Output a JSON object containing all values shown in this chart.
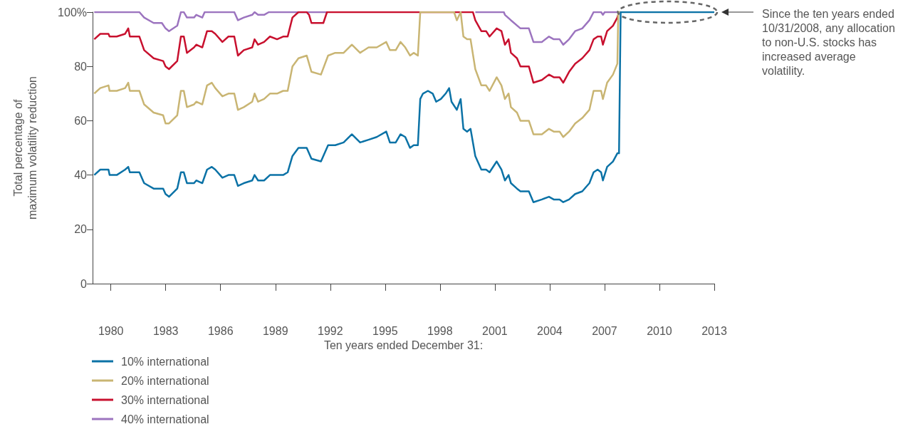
{
  "chart_data": {
    "type": "line",
    "xlabel": "Ten years ended December 31:",
    "ylabel": "Total percentage of\nmaximum volatility reduction",
    "xlim": [
      1979,
      2013
    ],
    "xticks": [
      1980,
      1983,
      1986,
      1989,
      1992,
      1995,
      1998,
      2001,
      2004,
      2007,
      2010,
      2013
    ],
    "ylim": [
      0,
      100
    ],
    "yticks": [
      0,
      20,
      40,
      60,
      80,
      {
        "value": 100,
        "label": "100%"
      }
    ],
    "grid": false,
    "legend": "bottom left",
    "marker": "none",
    "line_style": "solid",
    "annotations": [
      "Since the ten years ended 10/31/2008, any allocation to non-U.S. stocks has increased average volatility."
    ],
    "series": [
      {
        "name": "10% international",
        "color": "#0b72a6",
        "x": [
          1979.09,
          1979.42,
          1979.87,
          1979.93,
          1980.32,
          1980.78,
          1980.95,
          1981.04,
          1981.56,
          1981.82,
          1982.34,
          1982.86,
          1982.99,
          1983.18,
          1983.63,
          1983.83,
          1983.99,
          1984.16,
          1984.55,
          1984.67,
          1985.0,
          1985.26,
          1985.52,
          1985.71,
          1986.1,
          1986.43,
          1986.75,
          1986.95,
          1987.27,
          1987.73,
          1987.86,
          1988.05,
          1988.38,
          1988.7,
          1989.09,
          1989.42,
          1989.67,
          1989.93,
          1990.26,
          1990.71,
          1990.97,
          1991.49,
          1991.88,
          1992.27,
          1992.73,
          1993.18,
          1993.63,
          1994.09,
          1994.54,
          1995.06,
          1995.26,
          1995.58,
          1995.84,
          1996.1,
          1996.36,
          1996.56,
          1996.79,
          1996.92,
          1997.07,
          1997.34,
          1997.6,
          1997.79,
          1998.05,
          1998.31,
          1998.5,
          1998.63,
          1998.92,
          1999.13,
          1999.28,
          1999.48,
          1999.67,
          1999.93,
          2000.26,
          2000.52,
          2000.71,
          2001.1,
          2001.36,
          2001.55,
          2001.75,
          2001.88,
          2002.21,
          2002.4,
          2002.86,
          2003.11,
          2003.57,
          2003.96,
          2004.22,
          2004.54,
          2004.74,
          2005.06,
          2005.39,
          2005.78,
          2006.17,
          2006.4,
          2006.62,
          2006.81,
          2006.91,
          2007.14,
          2007.46,
          2007.7,
          2007.79,
          2007.88,
          2013
        ],
        "values": [
          40,
          42,
          42,
          40,
          40,
          42,
          43,
          41,
          41,
          37,
          35,
          35,
          33,
          32,
          35,
          41,
          41,
          37,
          37,
          38,
          37,
          42,
          43,
          42,
          39,
          40,
          40,
          36,
          37,
          38,
          40,
          38,
          38,
          40,
          40,
          40,
          41,
          47,
          50,
          50,
          46,
          45,
          51,
          51,
          52,
          55,
          52,
          53,
          54,
          56,
          52,
          52,
          55,
          54,
          50,
          51,
          51,
          68,
          70,
          71,
          70,
          67,
          68,
          70,
          72,
          67,
          64,
          68,
          57,
          56,
          57,
          47,
          42,
          42,
          41,
          45,
          42,
          38,
          40,
          37,
          35,
          34,
          34,
          30,
          31,
          32,
          31,
          31,
          30,
          31,
          33,
          34,
          37,
          41,
          42,
          41,
          38,
          43,
          45,
          48,
          48,
          100,
          100
        ]
      },
      {
        "name": "20% international",
        "color": "#c9b573",
        "x": [
          1979.09,
          1979.42,
          1979.87,
          1979.93,
          1980.32,
          1980.78,
          1980.95,
          1981.04,
          1981.56,
          1981.82,
          1982.34,
          1982.86,
          1982.99,
          1983.18,
          1983.63,
          1983.83,
          1983.99,
          1984.16,
          1984.55,
          1984.67,
          1985.0,
          1985.26,
          1985.52,
          1985.71,
          1986.1,
          1986.43,
          1986.75,
          1986.95,
          1987.27,
          1987.73,
          1987.86,
          1988.05,
          1988.38,
          1988.7,
          1989.09,
          1989.42,
          1989.67,
          1989.93,
          1990.26,
          1990.71,
          1990.97,
          1991.49,
          1991.88,
          1992.27,
          1992.73,
          1993.18,
          1993.63,
          1994.09,
          1994.54,
          1995.06,
          1995.26,
          1995.58,
          1995.84,
          1996.1,
          1996.36,
          1996.56,
          1996.79,
          1996.92,
          1998.77,
          1998.92,
          1999.13,
          1999.28,
          1999.48,
          1999.67,
          1999.93,
          2000.26,
          2000.52,
          2000.71,
          2001.1,
          2001.36,
          2001.55,
          2001.75,
          2001.88,
          2002.21,
          2002.4,
          2002.86,
          2003.11,
          2003.57,
          2003.96,
          2004.22,
          2004.54,
          2004.74,
          2005.06,
          2005.39,
          2005.78,
          2006.17,
          2006.4,
          2006.62,
          2006.81,
          2006.91,
          2007.14,
          2007.46,
          2007.7,
          2007.75,
          2007.88
        ],
        "values": [
          70,
          72,
          73,
          71,
          71,
          72,
          74,
          71,
          71,
          66,
          63,
          62,
          59,
          59,
          62,
          71,
          71,
          65,
          66,
          67,
          66,
          73,
          74,
          72,
          69,
          70,
          70,
          64,
          65,
          67,
          70,
          67,
          68,
          70,
          70,
          71,
          71,
          80,
          83,
          84,
          78,
          77,
          84,
          85,
          85,
          88,
          85,
          87,
          87,
          89,
          86,
          86,
          89,
          87,
          84,
          85,
          84,
          100,
          100,
          97,
          100,
          91,
          90,
          90,
          79,
          73,
          73,
          71,
          76,
          73,
          68,
          70,
          65,
          63,
          60,
          60,
          55,
          55,
          57,
          56,
          56,
          54,
          56,
          59,
          61,
          64,
          71,
          71,
          71,
          68,
          74,
          77,
          81,
          100,
          100
        ]
      },
      {
        "name": "30% international",
        "color": "#c8102e",
        "x": [
          1979.09,
          1979.42,
          1979.87,
          1979.93,
          1980.32,
          1980.78,
          1980.95,
          1981.04,
          1981.56,
          1981.82,
          1982.34,
          1982.86,
          1982.99,
          1983.18,
          1983.63,
          1983.83,
          1983.99,
          1984.16,
          1984.55,
          1984.67,
          1985.0,
          1985.26,
          1985.52,
          1985.71,
          1986.1,
          1986.43,
          1986.75,
          1986.95,
          1987.27,
          1987.73,
          1987.86,
          1988.05,
          1988.38,
          1988.7,
          1989.09,
          1989.42,
          1989.67,
          1989.93,
          1990.26,
          1990.71,
          1990.84,
          1990.97,
          1991.49,
          1991.62,
          1991.82,
          1999.8,
          1999.93,
          2000.26,
          2000.52,
          2000.71,
          2001.1,
          2001.36,
          2001.55,
          2001.75,
          2001.88,
          2002.21,
          2002.4,
          2002.86,
          2003.11,
          2003.57,
          2003.96,
          2004.22,
          2004.54,
          2004.74,
          2005.06,
          2005.39,
          2005.78,
          2006.17,
          2006.4,
          2006.62,
          2006.81,
          2006.91,
          2007.14,
          2007.46,
          2007.7,
          2007.79,
          2007.88
        ],
        "values": [
          90,
          92,
          92,
          91,
          91,
          92,
          94,
          91,
          91,
          86,
          83,
          82,
          80,
          79,
          82,
          91,
          91,
          85,
          87,
          88,
          87,
          93,
          93,
          92,
          89,
          91,
          91,
          84,
          86,
          87,
          90,
          88,
          89,
          91,
          90,
          91,
          91,
          98,
          100,
          100,
          99,
          96,
          96,
          96,
          100,
          100,
          97,
          93,
          93,
          91,
          94,
          93,
          88,
          90,
          85,
          83,
          80,
          80,
          74,
          75,
          77,
          76,
          76,
          74,
          78,
          81,
          83,
          86,
          90,
          91,
          91,
          88,
          93,
          95,
          98,
          100,
          100
        ]
      },
      {
        "name": "40% international",
        "color": "#9c74bf",
        "x": [
          1979.09,
          1981.56,
          1981.82,
          1982.34,
          1982.79,
          1982.99,
          1983.18,
          1983.63,
          1983.83,
          1983.99,
          1984.16,
          1984.55,
          1984.67,
          1985.0,
          1985.13,
          1986.75,
          1986.95,
          1987.27,
          1987.73,
          1987.86,
          1988.05,
          1988.38,
          1988.64,
          1991.82,
          1991.9,
          1999.8,
          1999.93,
          2001.49,
          2001.55,
          2001.88,
          2002.4,
          2002.86,
          2003.11,
          2003.57,
          2003.96,
          2004.22,
          2004.54,
          2004.74,
          2005.06,
          2005.39,
          2005.78,
          2006.17,
          2006.4,
          2006.81,
          2006.91,
          2007.01,
          2007.88
        ],
        "values": [
          100,
          100,
          98,
          96,
          96,
          94,
          93,
          95,
          100,
          100,
          98,
          98,
          99,
          98,
          100,
          100,
          97,
          98,
          99,
          100,
          99,
          99,
          100,
          100,
          null,
          null,
          100,
          100,
          99,
          97,
          94,
          94,
          89,
          89,
          91,
          90,
          90,
          88,
          90,
          93,
          94,
          97,
          100,
          100,
          99,
          100,
          100
        ]
      }
    ]
  }
}
